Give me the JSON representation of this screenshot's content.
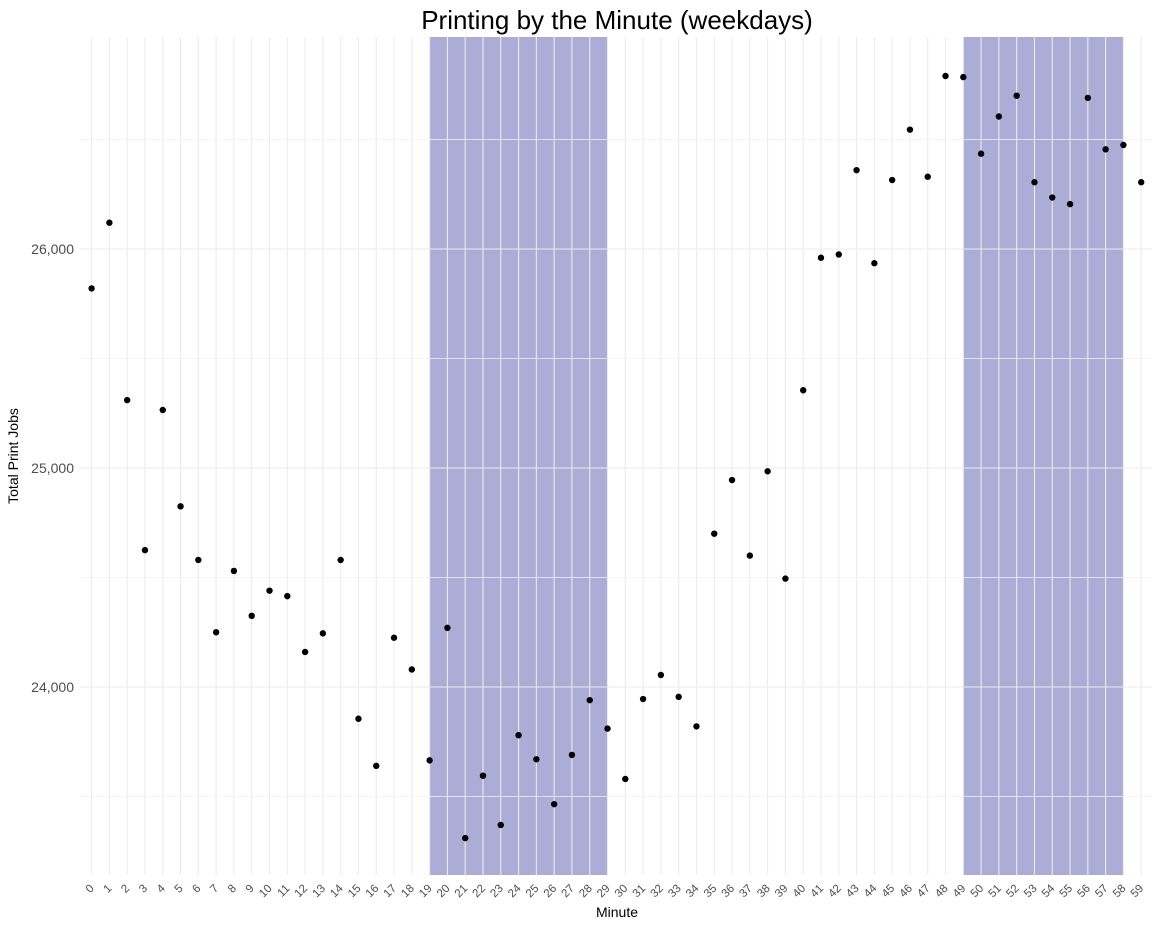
{
  "chart_data": {
    "type": "scatter",
    "title": "Printing by the Minute (weekdays)",
    "xlabel": "Minute",
    "ylabel": "Total Print Jobs",
    "x": [
      0,
      1,
      2,
      3,
      4,
      5,
      6,
      7,
      8,
      9,
      10,
      11,
      12,
      13,
      14,
      15,
      16,
      17,
      18,
      19,
      20,
      21,
      22,
      23,
      24,
      25,
      26,
      27,
      28,
      29,
      30,
      31,
      32,
      33,
      34,
      35,
      36,
      37,
      38,
      39,
      40,
      41,
      42,
      43,
      44,
      45,
      46,
      47,
      48,
      49,
      50,
      51,
      52,
      53,
      54,
      55,
      56,
      57,
      58,
      59
    ],
    "x_tick_labels": [
      "0",
      "1",
      "2",
      "3",
      "4",
      "5",
      "6",
      "7",
      "8",
      "9",
      "10",
      "11",
      "12",
      "13",
      "14",
      "15",
      "16",
      "17",
      "18",
      "19",
      "20",
      "21",
      "22",
      "23",
      "24",
      "25",
      "26",
      "27",
      "28",
      "29",
      "30",
      "31",
      "32",
      "33",
      "34",
      "35",
      "36",
      "37",
      "38",
      "39",
      "40",
      "41",
      "42",
      "43",
      "44",
      "45",
      "46",
      "47",
      "48",
      "49",
      "50",
      "51",
      "52",
      "53",
      "54",
      "55",
      "56",
      "57",
      "58",
      "59"
    ],
    "y": [
      25820,
      26120,
      25310,
      24625,
      25265,
      24825,
      24580,
      24250,
      24530,
      24325,
      24440,
      24415,
      24160,
      24245,
      24580,
      23855,
      23640,
      24225,
      24080,
      23665,
      24270,
      23310,
      23595,
      23370,
      23780,
      23670,
      23465,
      23690,
      23940,
      23810,
      23580,
      23945,
      24055,
      23955,
      23820,
      24700,
      24945,
      24600,
      24985,
      24495,
      25355,
      25960,
      25975,
      26360,
      25935,
      26315,
      26545,
      26330,
      26790,
      26785,
      26435,
      26605,
      26700,
      26305,
      26235,
      26205,
      26690,
      26455,
      26475,
      26305
    ],
    "ylim": [
      23160,
      26970
    ],
    "y_ticks": [
      24000,
      25000,
      26000
    ],
    "y_tick_labels": [
      "24,000",
      "25,000",
      "26,000"
    ],
    "highlight_ranges": [
      [
        19,
        29
      ],
      [
        49,
        58
      ]
    ],
    "highlight_color": "#abadd6",
    "point_color": "#000000",
    "grid": true,
    "legend": "none"
  }
}
